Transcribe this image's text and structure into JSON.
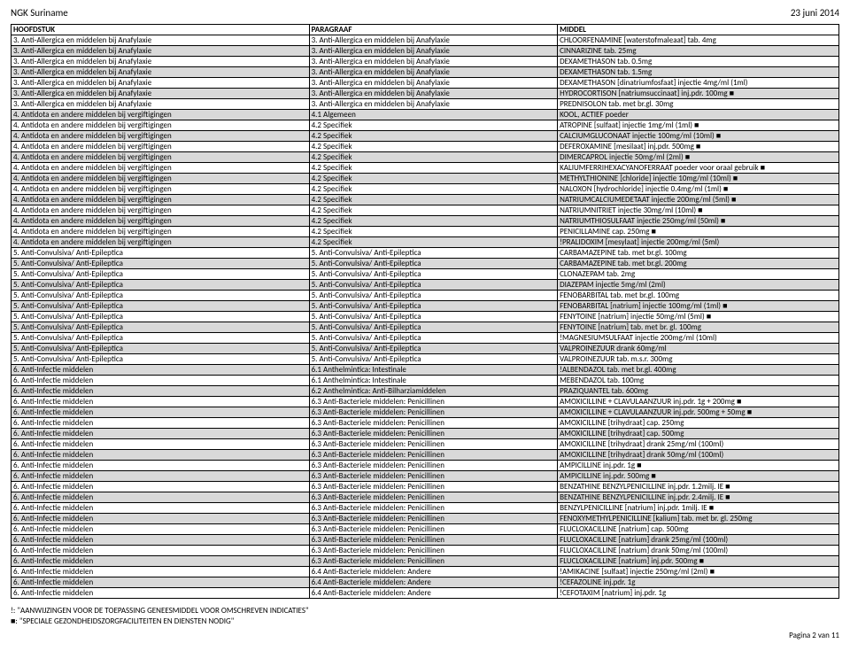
{
  "doc": {
    "org": "NGK Suriname",
    "date": "23 juni 2014",
    "page_label": "Pagina 2 van 11",
    "legend_line1": "!: \"AANWIJZINGEN VOOR DE TOEPASSING GENEESMIDDEL VOOR OMSCHREVEN INDICATIES\"",
    "legend_line2": "■: \"SPECIALE GEZONDHEIDSZORGFACILITEITEN EN DIENSTEN NODIG\""
  },
  "table": {
    "headers": {
      "h1": "HOOFDSTUK",
      "h2": "PARAGRAAF",
      "h3": "MIDDEL"
    },
    "rows": [
      {
        "s": false,
        "c1": "3. Anti-Allergica en middelen bij Anafylaxie",
        "c2": "3. Anti-Allergica en middelen bij Anafylaxie",
        "c3": "CHLOORFENAMINE [waterstofmaleaat] tab. 4mg"
      },
      {
        "s": true,
        "c1": "3. Anti-Allergica en middelen bij Anafylaxie",
        "c2": "3. Anti-Allergica en middelen bij Anafylaxie",
        "c3": "CINNARIZINE tab. 25mg"
      },
      {
        "s": false,
        "c1": "3. Anti-Allergica en middelen bij Anafylaxie",
        "c2": "3. Anti-Allergica en middelen bij Anafylaxie",
        "c3": "DEXAMETHASON tab. 0.5mg"
      },
      {
        "s": true,
        "c1": "3. Anti-Allergica en middelen bij Anafylaxie",
        "c2": "3. Anti-Allergica en middelen bij Anafylaxie",
        "c3": "DEXAMETHASON tab. 1.5mg"
      },
      {
        "s": false,
        "c1": "3. Anti-Allergica en middelen bij Anafylaxie",
        "c2": "3. Anti-Allergica en middelen bij Anafylaxie",
        "c3": "DEXAMETHASON [dinatriumfosfaat] injectie 4mg/ml (1ml)"
      },
      {
        "s": true,
        "c1": "3. Anti-Allergica en middelen bij Anafylaxie",
        "c2": "3. Anti-Allergica en middelen bij Anafylaxie",
        "c3": "HYDROCORTISON [natriumsuccinaat] inj.pdr. 100mg ■"
      },
      {
        "s": false,
        "c1": "3. Anti-Allergica en middelen bij Anafylaxie",
        "c2": "3. Anti-Allergica en middelen bij Anafylaxie",
        "c3": "PREDNISOLON  tab. met br.gl. 30mg"
      },
      {
        "s": true,
        "c1": "4. Antidota en andere middelen bij vergiftigingen",
        "c2": "4.1 Algemeen",
        "c3": "KOOL, ACTIEF poeder"
      },
      {
        "s": false,
        "c1": "4. Antidota en andere middelen bij vergiftigingen",
        "c2": "4.2 Specifiek",
        "c3": "ATROPINE [sulfaat] injectie 1mg/ml (1ml) ■"
      },
      {
        "s": true,
        "c1": "4. Antidota en andere middelen bij vergiftigingen",
        "c2": "4.2 Specifiek",
        "c3": "CALCIUMGLUCONAAT injectie 100mg/ml (10ml) ■"
      },
      {
        "s": false,
        "c1": "4. Antidota en andere middelen bij vergiftigingen",
        "c2": "4.2 Specifiek",
        "c3": "DEFEROXAMINE [mesilaat] inj.pdr. 500mg ■"
      },
      {
        "s": true,
        "c1": "4. Antidota en andere middelen bij vergiftigingen",
        "c2": "4.2 Specifiek",
        "c3": "DIMERCAPROL injectie 50mg/ml (2ml) ■"
      },
      {
        "s": false,
        "c1": "4. Antidota en andere middelen bij vergiftigingen",
        "c2": "4.2 Specifiek",
        "c3": "KALIUMFERRIHEXACYANOFERRAAT poeder voor oraal gebruik ■"
      },
      {
        "s": true,
        "c1": "4. Antidota en andere middelen bij vergiftigingen",
        "c2": "4.2 Specifiek",
        "c3": "METHYLTHIONINE [chloride] injectie 10mg/ml (10ml) ■"
      },
      {
        "s": false,
        "c1": "4. Antidota en andere middelen bij vergiftigingen",
        "c2": "4.2 Specifiek",
        "c3": "NALOXON [hydrochloride] injectie 0.4mg/ml (1ml) ■"
      },
      {
        "s": true,
        "c1": "4. Antidota en andere middelen bij vergiftigingen",
        "c2": "4.2 Specifiek",
        "c3": "NATRIUMCALCIUMEDETAAT injectie 200mg/ml (5ml) ■"
      },
      {
        "s": false,
        "c1": "4. Antidota en andere middelen bij vergiftigingen",
        "c2": "4.2 Specifiek",
        "c3": "NATRIUMNITRIET injectie 30mg/ml (10ml) ■"
      },
      {
        "s": true,
        "c1": "4. Antidota en andere middelen bij vergiftigingen",
        "c2": "4.2 Specifiek",
        "c3": "NATRIUMTHIOSULFAAT injectie 250mg/ml (50ml) ■"
      },
      {
        "s": false,
        "c1": "4. Antidota en andere middelen bij vergiftigingen",
        "c2": "4.2 Specifiek",
        "c3": "PENICILLAMINE cap. 250mg ■"
      },
      {
        "s": true,
        "c1": "4. Antidota en andere middelen bij vergiftigingen",
        "c2": "4.2 Specifiek",
        "c3": "!PRALIDOXIM [mesylaat] injectie 200mg/ml (5ml)"
      },
      {
        "s": false,
        "c1": "5. Anti-Convulsiva/ Anti-Epileptica",
        "c2": "5. Anti-Convulsiva/ Anti-Epileptica",
        "c3": "CARBAMAZEPINE tab. met br.gl. 100mg"
      },
      {
        "s": true,
        "c1": "5. Anti-Convulsiva/ Anti-Epileptica",
        "c2": "5. Anti-Convulsiva/ Anti-Epileptica",
        "c3": "CARBAMAZEPINE tab. met br.gl. 200mg"
      },
      {
        "s": false,
        "c1": "5. Anti-Convulsiva/ Anti-Epileptica",
        "c2": "5. Anti-Convulsiva/ Anti-Epileptica",
        "c3": "CLONAZEPAM tab. 2mg"
      },
      {
        "s": true,
        "c1": "5. Anti-Convulsiva/ Anti-Epileptica",
        "c2": "5. Anti-Convulsiva/ Anti-Epileptica",
        "c3": "DIAZEPAM injectie 5mg/ml (2ml)"
      },
      {
        "s": false,
        "c1": "5. Anti-Convulsiva/ Anti-Epileptica",
        "c2": "5. Anti-Convulsiva/ Anti-Epileptica",
        "c3": "FENOBARBITAL tab.  met  br.gl. 100mg"
      },
      {
        "s": true,
        "c1": "5. Anti-Convulsiva/ Anti-Epileptica",
        "c2": "5. Anti-Convulsiva/ Anti-Epileptica",
        "c3": "FENOBARBITAL [natrium] injectie 100mg/ml (1ml) ■"
      },
      {
        "s": false,
        "c1": "5. Anti-Convulsiva/ Anti-Epileptica",
        "c2": "5. Anti-Convulsiva/ Anti-Epileptica",
        "c3": "FENYTOINE [natrium] injectie 50mg/ml (5ml) ■"
      },
      {
        "s": true,
        "c1": "5. Anti-Convulsiva/ Anti-Epileptica",
        "c2": "5. Anti-Convulsiva/ Anti-Epileptica",
        "c3": "FENYTOINE [natrium] tab. met br. gl. 100mg"
      },
      {
        "s": false,
        "c1": "5. Anti-Convulsiva/ Anti-Epileptica",
        "c2": "5. Anti-Convulsiva/ Anti-Epileptica",
        "c3": "!MAGNESIUMSULFAAT injectie 200mg/ml (10ml)"
      },
      {
        "s": true,
        "c1": "5. Anti-Convulsiva/ Anti-Epileptica",
        "c2": "5. Anti-Convulsiva/ Anti-Epileptica",
        "c3": "VALPROINEZUUR drank 60mg/ml"
      },
      {
        "s": false,
        "c1": "5. Anti-Convulsiva/ Anti-Epileptica",
        "c2": "5. Anti-Convulsiva/ Anti-Epileptica",
        "c3": "VALPROINEZUUR tab. m.s.r. 300mg"
      },
      {
        "s": true,
        "c1": "6. Anti-Infectie middelen",
        "c2": "6.1 Anthelmintica: Intestinale",
        "c3": "!ALBENDAZOL tab. met br.gl. 400mg"
      },
      {
        "s": false,
        "c1": "6. Anti-Infectie middelen",
        "c2": "6.1 Anthelmintica: Intestinale",
        "c3": "MEBENDAZOL tab. 100mg"
      },
      {
        "s": true,
        "c1": "6. Anti-Infectie middelen",
        "c2": "6.2 Anthelmintica: Anti-Bilharziamiddelen",
        "c3": "PRAZIQUANTEL tab. 600mg"
      },
      {
        "s": false,
        "c1": "6. Anti-Infectie middelen",
        "c2": "6.3 Anti-Bacteriele middelen: Penicillinen",
        "c3": "AMOXICILLINE + CLAVULAANZUUR inj.pdr. 1g + 200mg ■"
      },
      {
        "s": true,
        "c1": "6. Anti-Infectie middelen",
        "c2": "6.3 Anti-Bacteriele middelen: Penicillinen",
        "c3": "AMOXICILLINE + CLAVULAANZUUR inj.pdr. 500mg + 50mg ■"
      },
      {
        "s": false,
        "c1": "6. Anti-Infectie middelen",
        "c2": "6.3 Anti-Bacteriele middelen: Penicillinen",
        "c3": "AMOXICILLINE [trihydraat] cap. 250mg"
      },
      {
        "s": true,
        "c1": "6. Anti-Infectie middelen",
        "c2": "6.3 Anti-Bacteriele middelen: Penicillinen",
        "c3": "AMOXICILLINE [trihydraat] cap. 500mg"
      },
      {
        "s": false,
        "c1": "6. Anti-Infectie middelen",
        "c2": "6.3 Anti-Bacteriele middelen: Penicillinen",
        "c3": "AMOXICILLINE [trihydraat] drank 25mg/ml (100ml)"
      },
      {
        "s": true,
        "c1": "6. Anti-Infectie middelen",
        "c2": "6.3 Anti-Bacteriele middelen: Penicillinen",
        "c3": "AMOXICILLINE [trihydraat] drank 50mg/ml (100ml)"
      },
      {
        "s": false,
        "c1": "6. Anti-Infectie middelen",
        "c2": "6.3 Anti-Bacteriele middelen: Penicillinen",
        "c3": "AMPICILLINE inj.pdr. 1g ■"
      },
      {
        "s": true,
        "c1": "6. Anti-Infectie middelen",
        "c2": "6.3 Anti-Bacteriele middelen: Penicillinen",
        "c3": "AMPICILLINE inj.pdr. 500mg ■"
      },
      {
        "s": false,
        "c1": "6. Anti-Infectie middelen",
        "c2": "6.3 Anti-Bacteriele middelen: Penicillinen",
        "c3": "BENZATHINE BENZYLPENICILLINE inj.pdr. 1.2milj. IE ■"
      },
      {
        "s": true,
        "c1": "6. Anti-Infectie middelen",
        "c2": "6.3 Anti-Bacteriele middelen: Penicillinen",
        "c3": "BENZATHINE BENZYLPENICILLINE inj.pdr. 2.4milj. IE ■"
      },
      {
        "s": false,
        "c1": "6. Anti-Infectie middelen",
        "c2": "6.3 Anti-Bacteriele middelen: Penicillinen",
        "c3": "BENZYLPENICILLINE [natrium] inj.pdr. 1milj. IE ■"
      },
      {
        "s": true,
        "c1": "6. Anti-Infectie middelen",
        "c2": "6.3 Anti-Bacteriele middelen: Penicillinen",
        "c3": "FENOXYMETHYLPENICILLINE [kalium] tab. met br. gl. 250mg"
      },
      {
        "s": false,
        "c1": "6. Anti-Infectie middelen",
        "c2": "6.3 Anti-Bacteriele middelen: Penicillinen",
        "c3": "FLUCLOXACILLINE [natrium] cap. 500mg"
      },
      {
        "s": true,
        "c1": "6. Anti-Infectie middelen",
        "c2": "6.3 Anti-Bacteriele middelen: Penicillinen",
        "c3": "FLUCLOXACILLINE [natrium] drank 25mg/ml (100ml)"
      },
      {
        "s": false,
        "c1": "6. Anti-Infectie middelen",
        "c2": "6.3 Anti-Bacteriele middelen: Penicillinen",
        "c3": "FLUCLOXACILLINE [natrium] drank 50mg/ml (100ml)"
      },
      {
        "s": true,
        "c1": "6. Anti-Infectie middelen",
        "c2": "6.3 Anti-Bacteriele middelen: Penicillinen",
        "c3": "FLUCLOXACILLINE [natrium] inj.pdr. 500mg ■"
      },
      {
        "s": false,
        "c1": "6. Anti-Infectie middelen",
        "c2": "6.4 Anti-Bacteriele middelen: Andere",
        "c3": "!AMIKACINE [sulfaat] injectie 250mg/ml (2ml) ■"
      },
      {
        "s": true,
        "c1": "6. Anti-Infectie middelen",
        "c2": "6.4 Anti-Bacteriele middelen: Andere",
        "c3": "!CEFAZOLINE inj.pdr. 1g"
      },
      {
        "s": false,
        "c1": "6. Anti-Infectie middelen",
        "c2": "6.4 Anti-Bacteriele middelen: Andere",
        "c3": "!CEFOTAXIM [natrium] inj.pdr. 1g"
      }
    ]
  }
}
